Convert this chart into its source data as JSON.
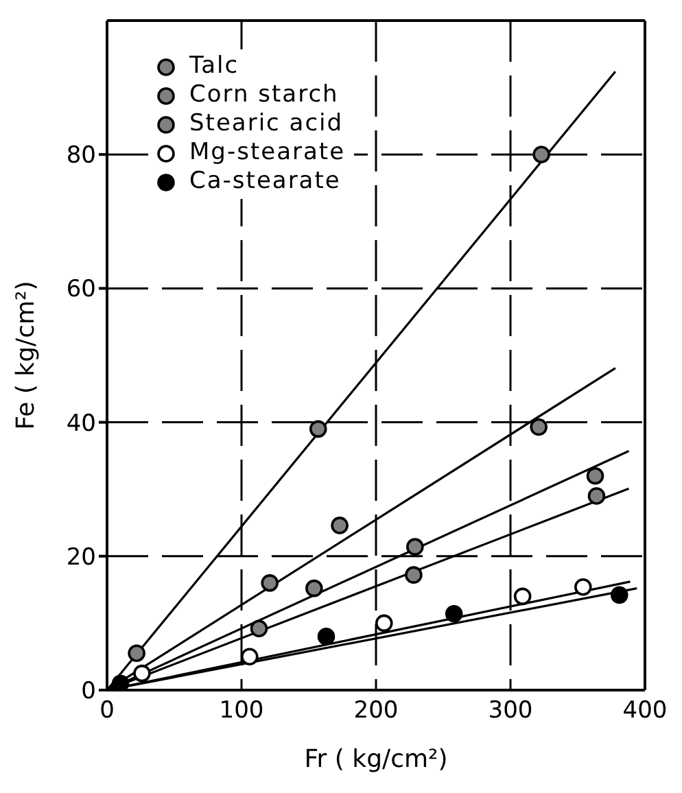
{
  "chart_data": {
    "type": "scatter",
    "xlabel": "Fr ( kg/cm²)",
    "ylabel": "Fe ( kg/cm²)",
    "xlim": [
      0,
      400
    ],
    "xticks": [
      0,
      100,
      200,
      300,
      400
    ],
    "ylim": [
      0,
      100
    ],
    "yticks": [
      0,
      20,
      40,
      60,
      80
    ],
    "grid": true,
    "legend": "top left",
    "marker": "circle",
    "series": [
      {
        "name": "Talc",
        "color": "#808080",
        "x": [
          22,
          157,
          323
        ],
        "values": [
          5.5,
          39,
          80
        ]
      },
      {
        "name": "Corn starch",
        "color": "#808080",
        "x": [
          121,
          173,
          321
        ],
        "values": [
          16,
          24.6,
          39.3
        ]
      },
      {
        "color": "#808080",
        "x": [
          154,
          229,
          363
        ],
        "values": [
          15.2,
          21.4,
          32
        ]
      },
      {
        "name": "Stearic acid",
        "color": "#808080",
        "x": [
          113,
          228,
          364
        ],
        "values": [
          9.2,
          17.2,
          29
        ]
      },
      {
        "name": "Mg-stearate",
        "color": "#ffffff",
        "x": [
          26,
          106,
          206,
          309,
          354
        ],
        "values": [
          2.5,
          5,
          10,
          14,
          15.4
        ]
      },
      {
        "name": "Ca-stearate",
        "color": "#000000",
        "x": [
          10,
          163,
          258,
          381
        ],
        "values": [
          1,
          8,
          11.4,
          14.2
        ]
      },
      {
        "type": "line",
        "marker": "none",
        "color": "#000000",
        "x": [
          0,
          378
        ],
        "values": [
          0,
          92.4
        ]
      },
      {
        "type": "line",
        "marker": "none",
        "color": "#000000",
        "x": [
          0,
          378
        ],
        "values": [
          0,
          48.1
        ]
      },
      {
        "type": "line",
        "marker": "none",
        "color": "#000000",
        "x": [
          0,
          388
        ],
        "values": [
          0,
          35.7
        ]
      },
      {
        "type": "line",
        "marker": "none",
        "color": "#000000",
        "x": [
          0,
          388
        ],
        "values": [
          0,
          30.1
        ]
      },
      {
        "type": "line",
        "marker": "none",
        "color": "#000000",
        "x": [
          0,
          389
        ],
        "values": [
          0,
          16.2
        ]
      },
      {
        "type": "line",
        "marker": "none",
        "color": "#000000",
        "x": [
          0,
          394
        ],
        "values": [
          0,
          15.2
        ]
      }
    ]
  }
}
